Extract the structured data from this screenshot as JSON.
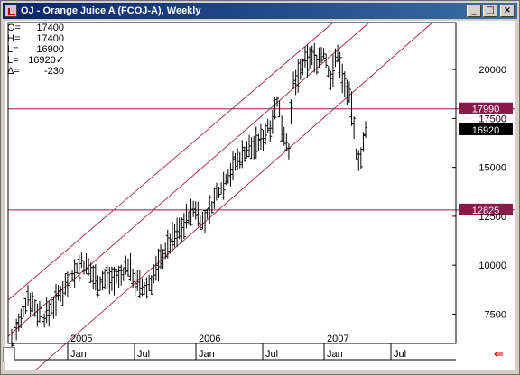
{
  "window": {
    "title": "OJ - Orange Juice A (FCOJ-A), Weekly",
    "minimize_icon": "_",
    "maximize_icon": "□",
    "close_icon": "×"
  },
  "ohlc_panel": [
    {
      "label": "O=",
      "value": "17400"
    },
    {
      "label": "H=",
      "value": "17400"
    },
    {
      "label": "L=",
      "value": "16900"
    },
    {
      "label": "L=",
      "value": "16920✓"
    },
    {
      "label": "Δ=",
      "value": "-230"
    }
  ],
  "nav": {
    "right_arrow_icon": "red-left-arrow-icon",
    "right_arrow_glyph": "⇐"
  },
  "colors": {
    "titlebar_start": "#0a246a",
    "titlebar_end": "#3a6ea5",
    "level": "#8b1a4a",
    "channel": "#b0243e",
    "bars": "#000000"
  },
  "chart_data": {
    "type": "ohlc",
    "title": "OJ - Orange Juice A (FCOJ-A), Weekly",
    "y_ticks": [
      7500,
      10000,
      12500,
      15000,
      17500,
      20000
    ],
    "ylim": [
      6000,
      22400
    ],
    "year_labels": [
      "2005",
      "2006",
      "2007"
    ],
    "month_ticks": [
      "Jan",
      "Jul",
      "Jan",
      "Jul",
      "Jan",
      "Jul"
    ],
    "levels": [
      {
        "value": 17990,
        "label": "17990",
        "style": "maroon"
      },
      {
        "value": 12825,
        "label": "12825",
        "style": "maroon"
      }
    ],
    "current_price": {
      "value": 16920,
      "label": "16920"
    },
    "channel": {
      "type": "parallel",
      "lines": 3
    },
    "series_points": [
      [
        0,
        6200
      ],
      [
        4,
        7100
      ],
      [
        7,
        8500
      ],
      [
        10,
        7800
      ],
      [
        14,
        7300
      ],
      [
        18,
        8000
      ],
      [
        22,
        8800
      ],
      [
        26,
        9500
      ],
      [
        30,
        10100
      ],
      [
        34,
        9600
      ],
      [
        38,
        9100
      ],
      [
        42,
        9400
      ],
      [
        46,
        9300
      ],
      [
        50,
        10000
      ],
      [
        54,
        9000
      ],
      [
        57,
        8700
      ],
      [
        60,
        9200
      ],
      [
        64,
        10300
      ],
      [
        68,
        11200
      ],
      [
        72,
        11800
      ],
      [
        76,
        12500
      ],
      [
        79,
        12900
      ],
      [
        82,
        12100
      ],
      [
        85,
        12800
      ],
      [
        88,
        13600
      ],
      [
        92,
        14400
      ],
      [
        96,
        15200
      ],
      [
        100,
        15800
      ],
      [
        104,
        16100
      ],
      [
        107,
        16400
      ],
      [
        111,
        17200
      ],
      [
        114,
        18300
      ],
      [
        117,
        16700
      ],
      [
        119,
        16000
      ],
      [
        121,
        19200
      ],
      [
        125,
        20100
      ],
      [
        128,
        20700
      ],
      [
        131,
        20500
      ],
      [
        134,
        20800
      ],
      [
        137,
        19500
      ],
      [
        140,
        20900
      ],
      [
        142,
        19600
      ],
      [
        144,
        19000
      ],
      [
        146,
        18000
      ],
      [
        148,
        15700
      ],
      [
        150,
        15500
      ],
      [
        152,
        16700
      ]
    ]
  }
}
